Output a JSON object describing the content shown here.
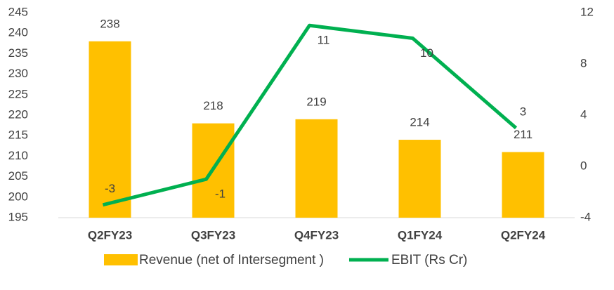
{
  "chart_data": {
    "type": "combo",
    "categories": [
      "Q2FY23",
      "Q3FY23",
      "Q4FY23",
      "Q1FY24",
      "Q2FY24"
    ],
    "series": [
      {
        "name": "Revenue (net of Intersegment )",
        "type": "bar",
        "color": "#FFC000",
        "values": [
          238,
          218,
          219,
          214,
          211
        ]
      },
      {
        "name": "EBIT (Rs Cr)",
        "type": "line",
        "axis": "y2",
        "color": "#00B050",
        "values": [
          -3,
          -1,
          11,
          10,
          3
        ]
      }
    ],
    "ylim": [
      195,
      245
    ],
    "yticks": [
      195,
      200,
      205,
      210,
      215,
      220,
      225,
      230,
      235,
      240,
      245
    ],
    "y2lim": [
      -4,
      12
    ],
    "y2ticks": [
      -4,
      0,
      4,
      8,
      12
    ],
    "legend": "bottom"
  }
}
